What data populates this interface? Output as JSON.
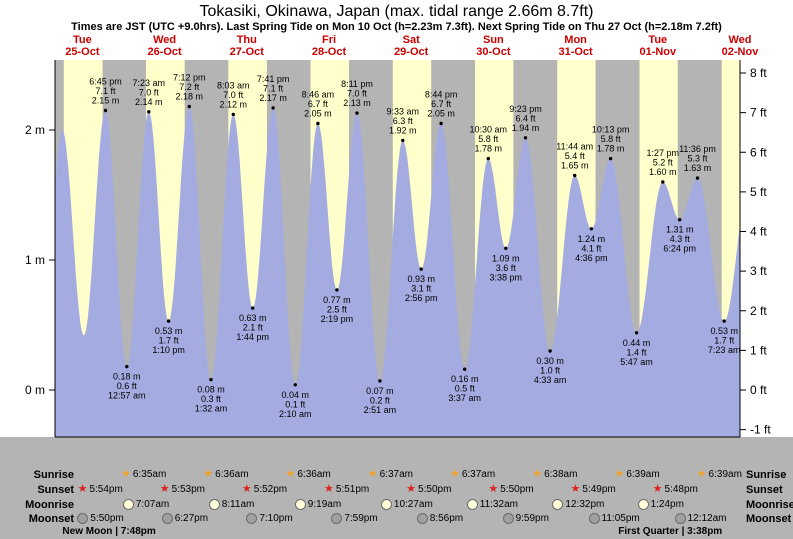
{
  "title": "Tokasiki, Okinawa, Japan (max. tidal range 2.66m 8.7ft)",
  "subtitle": "Times are JST (UTC +9.0hrs). Last Spring Tide on Mon 10 Oct (h=2.23m 7.3ft). Next Spring Tide on Thu 27 Oct (h=2.18m 7.2ft)",
  "colors": {
    "night_band": "#b4b4b4",
    "day_band": "#ffffcc",
    "tide_fill": "#a3abe0",
    "panel_bg": "#b4b4b4",
    "day_label_red": "#cc0000",
    "axis": "#000000",
    "sunrise_star": "#eea32c",
    "sunset_star": "#dd2222",
    "moonrise_fill": "#ffffd9",
    "moonset_fill": "#a0a0a0"
  },
  "days": [
    {
      "name": "Tue",
      "date": "25-Oct"
    },
    {
      "name": "Wed",
      "date": "26-Oct"
    },
    {
      "name": "Thu",
      "date": "27-Oct"
    },
    {
      "name": "Fri",
      "date": "28-Oct"
    },
    {
      "name": "Sat",
      "date": "29-Oct"
    },
    {
      "name": "Sun",
      "date": "30-Oct"
    },
    {
      "name": "Mon",
      "date": "31-Oct"
    },
    {
      "name": "Tue",
      "date": "01-Nov"
    },
    {
      "name": "Wed",
      "date": "02-Nov"
    }
  ],
  "axes": {
    "left": [
      {
        "label": "2 m",
        "m": 2
      },
      {
        "label": "1 m",
        "m": 1
      },
      {
        "label": "0 m",
        "m": 0
      }
    ],
    "right": [
      {
        "label": "8 ft",
        "ft": 8
      },
      {
        "label": "7 ft",
        "ft": 7
      },
      {
        "label": "6 ft",
        "ft": 6
      },
      {
        "label": "5 ft",
        "ft": 5
      },
      {
        "label": "4 ft",
        "ft": 4
      },
      {
        "label": "3 ft",
        "ft": 3
      },
      {
        "label": "2 ft",
        "ft": 2
      },
      {
        "label": "1 ft",
        "ft": 1
      },
      {
        "label": "0 ft",
        "ft": 0
      },
      {
        "label": "-1 ft",
        "ft": -1
      }
    ]
  },
  "chart_data": {
    "type": "area",
    "title": "Tokasiki, Okinawa, Japan (max. tidal range 2.66m 8.7ft)",
    "ylabel_left": "m",
    "ylabel_right": "ft",
    "y_ticks_m": [
      0,
      1,
      2
    ],
    "y_ticks_ft": [
      -1,
      0,
      1,
      2,
      3,
      4,
      5,
      6,
      7,
      8
    ],
    "x_days": [
      "Tue 25-Oct",
      "Wed 26-Oct",
      "Thu 27-Oct",
      "Fri 28-Oct",
      "Sat 29-Oct",
      "Sun 30-Oct",
      "Mon 31-Oct",
      "Tue 01-Nov",
      "Wed 02-Nov"
    ],
    "tide_events": [
      {
        "day": 0,
        "time": "6:45 pm",
        "type": "high",
        "height_m": 2.15,
        "height_ft": 7.1
      },
      {
        "day": 1,
        "time": "12:57 am",
        "type": "low",
        "height_m": 0.18,
        "height_ft": 0.6
      },
      {
        "day": 1,
        "time": "7:23 am",
        "type": "high",
        "height_m": 2.14,
        "height_ft": 7.0
      },
      {
        "day": 1,
        "time": "1:10 pm",
        "type": "low",
        "height_m": 0.53,
        "height_ft": 1.7
      },
      {
        "day": 1,
        "time": "7:12 pm",
        "type": "high",
        "height_m": 2.18,
        "height_ft": 7.2
      },
      {
        "day": 2,
        "time": "1:32 am",
        "type": "low",
        "height_m": 0.08,
        "height_ft": 0.3
      },
      {
        "day": 2,
        "time": "8:03 am",
        "type": "high",
        "height_m": 2.12,
        "height_ft": 7.0
      },
      {
        "day": 2,
        "time": "1:44 pm",
        "type": "low",
        "height_m": 0.63,
        "height_ft": 2.1
      },
      {
        "day": 2,
        "time": "7:41 pm",
        "type": "high",
        "height_m": 2.17,
        "height_ft": 7.1
      },
      {
        "day": 3,
        "time": "2:10 am",
        "type": "low",
        "height_m": 0.04,
        "height_ft": 0.1
      },
      {
        "day": 3,
        "time": "8:46 am",
        "type": "high",
        "height_m": 2.05,
        "height_ft": 6.7
      },
      {
        "day": 3,
        "time": "2:19 pm",
        "type": "low",
        "height_m": 0.77,
        "height_ft": 2.5
      },
      {
        "day": 3,
        "time": "8:11 pm",
        "type": "high",
        "height_m": 2.13,
        "height_ft": 7.0
      },
      {
        "day": 4,
        "time": "2:51 am",
        "type": "low",
        "height_m": 0.07,
        "height_ft": 0.2
      },
      {
        "day": 4,
        "time": "9:33 am",
        "type": "high",
        "height_m": 1.92,
        "height_ft": 6.3
      },
      {
        "day": 4,
        "time": "2:56 pm",
        "type": "low",
        "height_m": 0.93,
        "height_ft": 3.1
      },
      {
        "day": 4,
        "time": "8:44 pm",
        "type": "high",
        "height_m": 2.05,
        "height_ft": 6.7
      },
      {
        "day": 5,
        "time": "3:37 am",
        "type": "low",
        "height_m": 0.16,
        "height_ft": 0.5
      },
      {
        "day": 5,
        "time": "10:30 am",
        "type": "high",
        "height_m": 1.78,
        "height_ft": 5.8
      },
      {
        "day": 5,
        "time": "3:38 pm",
        "type": "low",
        "height_m": 1.09,
        "height_ft": 3.6
      },
      {
        "day": 5,
        "time": "9:23 pm",
        "type": "high",
        "height_m": 1.94,
        "height_ft": 6.4
      },
      {
        "day": 6,
        "time": "4:33 am",
        "type": "low",
        "height_m": 0.3,
        "height_ft": 1.0
      },
      {
        "day": 6,
        "time": "11:44 am",
        "type": "high",
        "height_m": 1.65,
        "height_ft": 5.4
      },
      {
        "day": 6,
        "time": "4:36 pm",
        "type": "low",
        "height_m": 1.24,
        "height_ft": 4.1
      },
      {
        "day": 6,
        "time": "10:13 pm",
        "type": "high",
        "height_m": 1.78,
        "height_ft": 5.8
      },
      {
        "day": 7,
        "time": "5:47 am",
        "type": "low",
        "height_m": 0.44,
        "height_ft": 1.4
      },
      {
        "day": 7,
        "time": "1:27 pm",
        "type": "high",
        "height_m": 1.6,
        "height_ft": 5.2
      },
      {
        "day": 7,
        "time": "6:24 pm",
        "type": "low",
        "height_m": 1.31,
        "height_ft": 4.3
      },
      {
        "day": 7,
        "time": "11:36 pm",
        "type": "high",
        "height_m": 1.63,
        "height_ft": 5.3
      },
      {
        "day": 8,
        "time": "7:23 am",
        "type": "low",
        "height_m": 0.53,
        "height_ft": 1.7
      }
    ],
    "curve_guides": [
      {
        "day": 0,
        "time": "12:05 am",
        "type": "low",
        "height_m": 0.3
      },
      {
        "day": 0,
        "time": "6:05 am",
        "type": "high",
        "height_m": 2.0
      },
      {
        "day": 0,
        "time": "12:25 pm",
        "type": "low",
        "height_m": 0.42
      },
      {
        "day": 8,
        "time": "2:30 pm",
        "type": "high",
        "height_m": 1.55
      }
    ]
  },
  "sun_moon": {
    "rows": [
      {
        "id": "sunrise",
        "label": "Sunrise",
        "icon": "sunrise-star-icon",
        "entries": [
          {
            "day": 1,
            "time": "6:35am"
          },
          {
            "day": 2,
            "time": "6:36am"
          },
          {
            "day": 3,
            "time": "6:36am"
          },
          {
            "day": 4,
            "time": "6:37am"
          },
          {
            "day": 5,
            "time": "6:37am"
          },
          {
            "day": 6,
            "time": "6:38am"
          },
          {
            "day": 7,
            "time": "6:39am"
          },
          {
            "day": 8,
            "time": "6:39am"
          }
        ]
      },
      {
        "id": "sunset",
        "label": "Sunset",
        "icon": "sunset-star-icon",
        "entries": [
          {
            "day": 0,
            "time": "5:54pm"
          },
          {
            "day": 1,
            "time": "5:53pm"
          },
          {
            "day": 2,
            "time": "5:52pm"
          },
          {
            "day": 3,
            "time": "5:51pm"
          },
          {
            "day": 4,
            "time": "5:50pm"
          },
          {
            "day": 5,
            "time": "5:50pm"
          },
          {
            "day": 6,
            "time": "5:49pm"
          },
          {
            "day": 7,
            "time": "5:48pm"
          }
        ]
      },
      {
        "id": "moonrise",
        "label": "Moonrise",
        "icon": "moonrise-icon",
        "entries": [
          {
            "day": 1,
            "time": "7:07am"
          },
          {
            "day": 2,
            "time": "8:11am"
          },
          {
            "day": 3,
            "time": "9:19am"
          },
          {
            "day": 4,
            "time": "10:27am"
          },
          {
            "day": 5,
            "time": "11:32am"
          },
          {
            "day": 6,
            "time": "12:32pm"
          },
          {
            "day": 7,
            "time": "1:24pm"
          }
        ]
      },
      {
        "id": "moonset",
        "label": "Moonset",
        "icon": "moonset-icon",
        "entries": [
          {
            "day": 0,
            "time": "5:50pm"
          },
          {
            "day": 1,
            "time": "6:27pm"
          },
          {
            "day": 2,
            "time": "7:10pm"
          },
          {
            "day": 3,
            "time": "7:59pm"
          },
          {
            "day": 4,
            "time": "8:56pm"
          },
          {
            "day": 5,
            "time": "9:59pm"
          },
          {
            "day": 6,
            "time": "11:05pm"
          },
          {
            "day": 8,
            "time": "12:12am"
          }
        ]
      }
    ],
    "phases": [
      {
        "label": "New Moon | 7:48pm",
        "day": 0,
        "time": "7:48pm"
      },
      {
        "label": "First Quarter | 3:38pm",
        "day": 7,
        "time": "3:38pm"
      }
    ]
  }
}
